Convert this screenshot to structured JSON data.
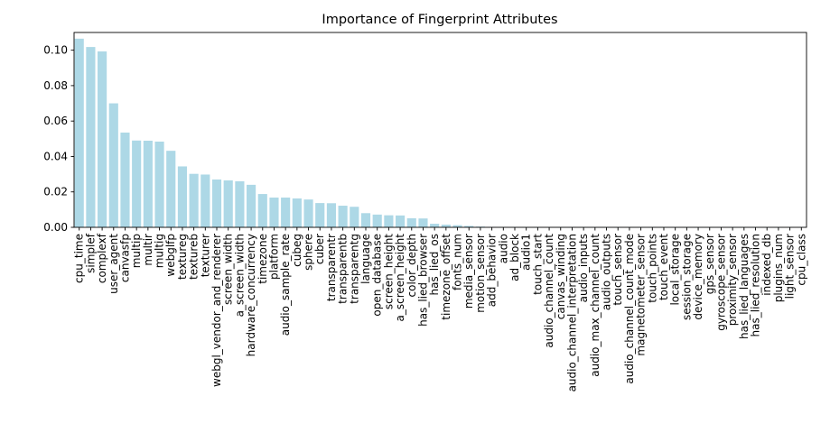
{
  "chart_data": {
    "type": "bar",
    "title": "Importance of Fingerprint Attributes",
    "xlabel": "",
    "ylabel": "",
    "ylim": [
      0,
      0.11
    ],
    "yticks": [
      "0.00",
      "0.02",
      "0.04",
      "0.06",
      "0.08",
      "0.10"
    ],
    "yticks_values": [
      0,
      0.02,
      0.04,
      0.06,
      0.08,
      0.1
    ],
    "bar_color": "#add8e6",
    "grid": false,
    "categories": [
      "cpu_time",
      "simplef",
      "complexf",
      "user_agent",
      "canvasfp",
      "multip",
      "multir",
      "multig",
      "webglfp",
      "textureg",
      "textureb",
      "texturer",
      "webgl_vendor_and_renderer",
      "screen_width",
      "a_screen_width",
      "hardware_concurrency",
      "timezone",
      "platform",
      "audio_sample_rate",
      "cubeg",
      "sphere",
      "cuber",
      "transparentr",
      "transparentb",
      "transparentg",
      "language",
      "open_database",
      "screen_height",
      "a_screen_height",
      "color_depth",
      "has_lied_browser",
      "has_lied_os",
      "timezone_offset",
      "fonts_num",
      "media_sensor",
      "motion_sensor",
      "add_behavior",
      "audio",
      "ad_block",
      "audio1",
      "touch_start",
      "audio_channel_count",
      "canvas_winding",
      "audio_channel_interpretation",
      "audio_inputs",
      "audio_max_channel_count",
      "audio_outputs",
      "touch_sensor",
      "audio_channel_count_mode",
      "magnetometer_sensor",
      "touch_points",
      "touch_event",
      "local_storage",
      "session_storage",
      "device_memory",
      "gps_sensor",
      "gyroscope_sensor",
      "proximity_sensor",
      "has_lied_languages",
      "has_lied_resolution",
      "indexed_db",
      "plugins_num",
      "light_sensor",
      "cpu_class"
    ],
    "values": [
      0.1065,
      0.1018,
      0.0993,
      0.07,
      0.0535,
      0.049,
      0.0489,
      0.0484,
      0.0432,
      0.0344,
      0.0302,
      0.0298,
      0.027,
      0.0265,
      0.026,
      0.024,
      0.0188,
      0.0168,
      0.0168,
      0.0163,
      0.0157,
      0.0137,
      0.0136,
      0.0122,
      0.0116,
      0.008,
      0.0072,
      0.0068,
      0.0067,
      0.0051,
      0.005,
      0.002,
      0.0015,
      0.0012,
      0.0008,
      0.0004,
      0.0002,
      0.0001,
      0.0001,
      0.0001,
      0.0001,
      0.0001,
      0.0001,
      0.0001,
      0.0001,
      0.0001,
      0.0001,
      0.0001,
      0.0001,
      0.0001,
      0.0001,
      0.0001,
      0.0001,
      0.0001,
      0.0001,
      0.0001,
      0.0001,
      0.0001,
      0.0001,
      0.0001,
      0.0001,
      0.0001,
      0.0001,
      0.0001
    ]
  }
}
